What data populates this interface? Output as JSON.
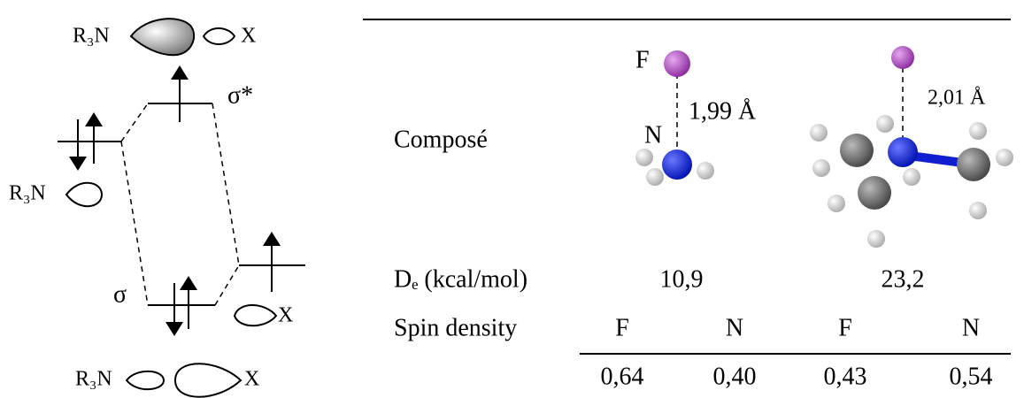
{
  "diagram": {
    "top": {
      "donor": "R₃N",
      "acceptor": "X"
    },
    "antibonding": "σ*",
    "bonding": "σ",
    "donor_orbital": "R₃N",
    "acceptor_orbital": "X",
    "bottom": {
      "donor": "R₃N",
      "acceptor": "X"
    }
  },
  "table": {
    "header": "Composé",
    "molecules": [
      {
        "atom_f": "F",
        "atom_n": "N",
        "distance": "1,99 Å"
      },
      {
        "distance": "2,01 Å"
      }
    ],
    "rows": [
      {
        "label": "Dₑ (kcal/mol)",
        "values": [
          "10,9",
          "23,2"
        ]
      },
      {
        "label": "Spin density",
        "values": [
          "F",
          "N",
          "F",
          "N"
        ]
      },
      {
        "values": [
          "0,64",
          "0,40",
          "0,43",
          "0,54"
        ]
      }
    ]
  }
}
